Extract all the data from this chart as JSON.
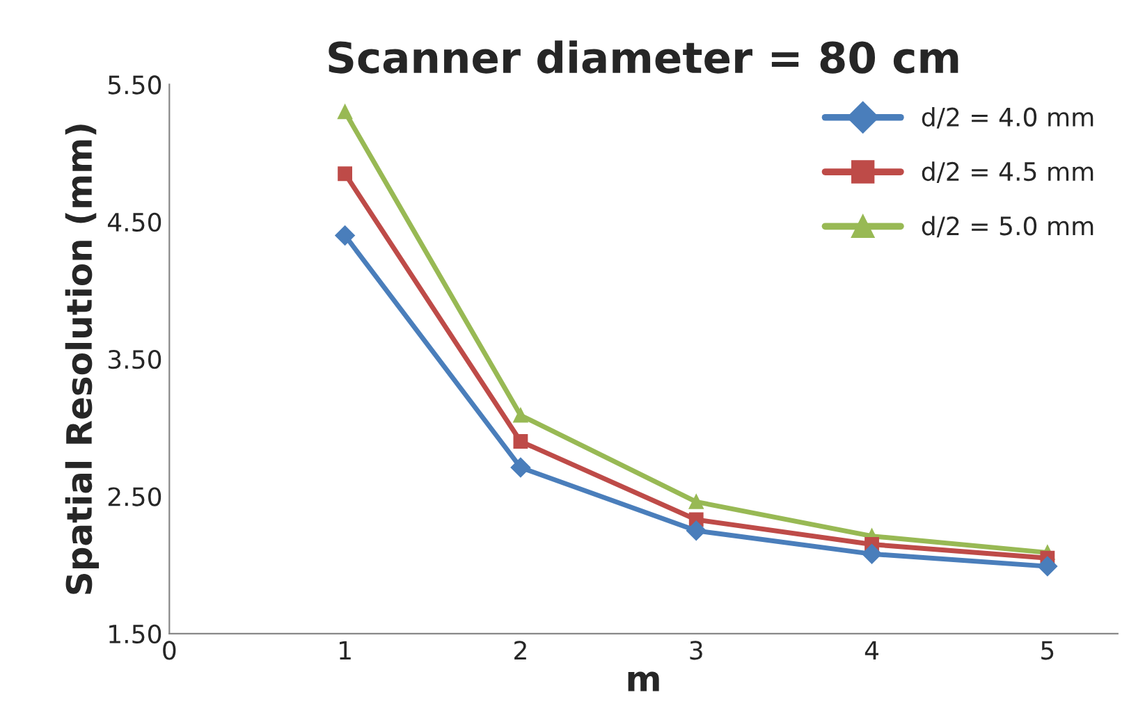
{
  "chart_data": {
    "type": "line",
    "title": "Scanner diameter = 80 cm",
    "xlabel": "m",
    "ylabel": "Spatial Resolution (mm)",
    "x": [
      1,
      2,
      3,
      4,
      5
    ],
    "series": [
      {
        "name": "d/2 = 4.0 mm",
        "color": "#4a7ebb",
        "marker": "diamond",
        "values": [
          4.4,
          2.71,
          2.25,
          2.08,
          1.99
        ]
      },
      {
        "name": "d/2 = 4.5 mm",
        "color": "#be4b48",
        "marker": "square",
        "values": [
          4.85,
          2.9,
          2.33,
          2.15,
          2.05
        ]
      },
      {
        "name": "d/2 = 5.0 mm",
        "color": "#98b954",
        "marker": "triangle",
        "values": [
          5.3,
          3.09,
          2.46,
          2.21,
          2.09
        ]
      }
    ],
    "xlim": [
      0,
      5.4
    ],
    "xticks": [
      0,
      1,
      2,
      3,
      4,
      5
    ],
    "ylim": [
      1.5,
      5.5
    ],
    "yticks": [
      {
        "value": 1.5,
        "label": "1.50"
      },
      {
        "value": 2.5,
        "label": "2.50"
      },
      {
        "value": 3.5,
        "label": "3.50"
      },
      {
        "value": 4.5,
        "label": "4.50"
      },
      {
        "value": 5.5,
        "label": "5.50"
      }
    ],
    "grid": false,
    "legend": "top right",
    "line_style": "solid"
  }
}
